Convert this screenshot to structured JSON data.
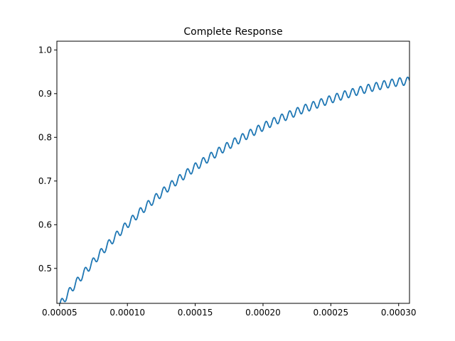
{
  "chart_data": {
    "type": "line",
    "title": "Complete Response",
    "xlabel": "",
    "ylabel": "",
    "xlim": [
      4.8e-05,
      0.000308
    ],
    "ylim": [
      0.42,
      1.02
    ],
    "grid": false,
    "legend": "none",
    "x_ticks": [
      "0.00005",
      "0.00010",
      "0.00015",
      "0.00020",
      "0.00025",
      "0.00030"
    ],
    "x_tick_values": [
      5e-05,
      0.0001,
      0.00015,
      0.0002,
      0.00025,
      0.0003
    ],
    "y_ticks": [
      "0.5",
      "0.6",
      "0.7",
      "0.8",
      "0.9",
      "1.0"
    ],
    "y_tick_values": [
      0.5,
      0.6,
      0.7,
      0.8,
      0.9,
      1.0
    ],
    "series": [
      {
        "color": "#1f77b4",
        "x": [
          5e-05,
          6e-05,
          7e-05,
          8e-05,
          9e-05,
          0.0001,
          0.00011,
          0.00012,
          0.00013,
          0.00014,
          0.00015,
          0.00016,
          0.00017,
          0.00018,
          0.00019,
          0.0002,
          0.00021,
          0.00022,
          0.00023,
          0.00024,
          0.00025,
          0.00026,
          0.00027,
          0.00028,
          0.00029,
          0.0003,
          0.000308
        ],
        "y": [
          0.415,
          0.458,
          0.497,
          0.534,
          0.569,
          0.601,
          0.631,
          0.659,
          0.685,
          0.709,
          0.732,
          0.753,
          0.773,
          0.791,
          0.808,
          0.824,
          0.839,
          0.852,
          0.865,
          0.876,
          0.887,
          0.897,
          0.906,
          0.914,
          0.921,
          0.927,
          0.929
        ],
        "ripple_amplitude": 0.009,
        "ripple_period": 5.8e-06
      }
    ]
  }
}
